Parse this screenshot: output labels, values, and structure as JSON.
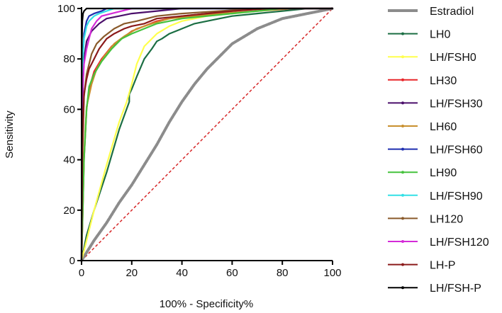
{
  "chart_data": {
    "type": "line",
    "title": "",
    "xlabel": "100% - Specificity%",
    "ylabel": "Sensitivity",
    "xlim": [
      0,
      100
    ],
    "ylim": [
      0,
      100
    ],
    "xticks": [
      "0",
      "20",
      "40",
      "60",
      "80",
      "100"
    ],
    "yticks": [
      "0",
      "20",
      "40",
      "60",
      "80",
      "100"
    ],
    "reference_line": {
      "name": "reference",
      "color": "#d62728",
      "points": [
        [
          0,
          0
        ],
        [
          100,
          100
        ]
      ]
    },
    "legend_position": "right",
    "series": [
      {
        "name": "Estradiol",
        "color": "#8c8c8c",
        "points": [
          [
            0,
            0
          ],
          [
            5,
            8
          ],
          [
            10,
            15
          ],
          [
            15,
            23
          ],
          [
            20,
            30
          ],
          [
            25,
            38
          ],
          [
            30,
            46
          ],
          [
            35,
            55
          ],
          [
            40,
            63
          ],
          [
            45,
            70
          ],
          [
            50,
            76
          ],
          [
            55,
            81
          ],
          [
            60,
            86
          ],
          [
            65,
            89
          ],
          [
            70,
            92
          ],
          [
            75,
            94
          ],
          [
            80,
            96
          ],
          [
            85,
            97
          ],
          [
            90,
            98
          ],
          [
            95,
            99
          ],
          [
            100,
            100
          ]
        ]
      },
      {
        "name": "LH0",
        "color": "#1b6e43",
        "points": [
          [
            0,
            0
          ],
          [
            1,
            5
          ],
          [
            2,
            10
          ],
          [
            5,
            20
          ],
          [
            10,
            35
          ],
          [
            15,
            52
          ],
          [
            19,
            63
          ],
          [
            19,
            66
          ],
          [
            20,
            68
          ],
          [
            22,
            73
          ],
          [
            25,
            80
          ],
          [
            28,
            84
          ],
          [
            30,
            87
          ],
          [
            32,
            88
          ],
          [
            35,
            90
          ],
          [
            40,
            92
          ],
          [
            45,
            94
          ],
          [
            50,
            95
          ],
          [
            55,
            96
          ],
          [
            60,
            97
          ],
          [
            70,
            98
          ],
          [
            80,
            99
          ],
          [
            90,
            100
          ],
          [
            100,
            100
          ]
        ]
      },
      {
        "name": "LH/FSH0",
        "color": "#ffff4d",
        "points": [
          [
            0,
            0
          ],
          [
            5,
            20
          ],
          [
            10,
            38
          ],
          [
            15,
            55
          ],
          [
            18,
            63
          ],
          [
            20,
            70
          ],
          [
            22,
            78
          ],
          [
            25,
            85
          ],
          [
            30,
            90
          ],
          [
            35,
            93
          ],
          [
            40,
            95
          ],
          [
            50,
            97
          ],
          [
            60,
            98
          ],
          [
            70,
            99
          ],
          [
            80,
            100
          ],
          [
            100,
            100
          ]
        ]
      },
      {
        "name": "LH30",
        "color": "#e8262a",
        "points": [
          [
            0,
            0
          ],
          [
            0.5,
            20
          ],
          [
            1,
            40
          ],
          [
            2,
            60
          ],
          [
            3,
            68
          ],
          [
            5,
            75
          ],
          [
            8,
            80
          ],
          [
            12,
            85
          ],
          [
            16,
            88
          ],
          [
            20,
            91
          ],
          [
            25,
            93
          ],
          [
            30,
            95
          ],
          [
            40,
            97
          ],
          [
            50,
            98
          ],
          [
            60,
            99
          ],
          [
            70,
            100
          ],
          [
            100,
            100
          ]
        ]
      },
      {
        "name": "LH/FSH30",
        "color": "#4b0f6b",
        "points": [
          [
            0,
            0
          ],
          [
            0.3,
            40
          ],
          [
            0.6,
            70
          ],
          [
            1,
            80
          ],
          [
            2,
            87
          ],
          [
            4,
            91
          ],
          [
            7,
            94
          ],
          [
            10,
            96
          ],
          [
            15,
            97
          ],
          [
            20,
            98
          ],
          [
            30,
            99
          ],
          [
            40,
            100
          ],
          [
            100,
            100
          ]
        ]
      },
      {
        "name": "LH60",
        "color": "#c8902e",
        "points": [
          [
            0,
            0
          ],
          [
            0.5,
            22
          ],
          [
            1,
            42
          ],
          [
            2,
            61
          ],
          [
            4,
            70
          ],
          [
            6,
            76
          ],
          [
            9,
            81
          ],
          [
            13,
            86
          ],
          [
            17,
            89
          ],
          [
            22,
            92
          ],
          [
            28,
            94
          ],
          [
            35,
            96
          ],
          [
            45,
            97
          ],
          [
            55,
            98
          ],
          [
            70,
            99
          ],
          [
            85,
            100
          ],
          [
            100,
            100
          ]
        ]
      },
      {
        "name": "LH/FSH60",
        "color": "#1f2fb0",
        "points": [
          [
            0,
            0
          ],
          [
            0.2,
            60
          ],
          [
            0.5,
            80
          ],
          [
            1,
            90
          ],
          [
            2,
            95
          ],
          [
            3,
            97
          ],
          [
            5,
            98
          ],
          [
            8,
            99
          ],
          [
            10,
            100
          ],
          [
            100,
            100
          ]
        ]
      },
      {
        "name": "LH90",
        "color": "#45c23d",
        "points": [
          [
            0,
            0
          ],
          [
            0.5,
            20
          ],
          [
            1,
            40
          ],
          [
            2,
            60
          ],
          [
            3,
            69
          ],
          [
            5,
            74
          ],
          [
            8,
            79
          ],
          [
            12,
            84
          ],
          [
            16,
            88
          ],
          [
            20,
            90
          ],
          [
            25,
            92
          ],
          [
            30,
            94
          ],
          [
            40,
            96
          ],
          [
            50,
            97
          ],
          [
            60,
            98
          ],
          [
            70,
            99
          ],
          [
            80,
            100
          ],
          [
            100,
            100
          ]
        ]
      },
      {
        "name": "LH/FSH90",
        "color": "#33e0e6",
        "points": [
          [
            0,
            0
          ],
          [
            0.2,
            60
          ],
          [
            0.5,
            80
          ],
          [
            1,
            88
          ],
          [
            2,
            93
          ],
          [
            3,
            95
          ],
          [
            5,
            97
          ],
          [
            7,
            98
          ],
          [
            10,
            99
          ],
          [
            13,
            100
          ],
          [
            100,
            100
          ]
        ]
      },
      {
        "name": "LH120",
        "color": "#8a5a2b",
        "points": [
          [
            0,
            0
          ],
          [
            0.3,
            40
          ],
          [
            1,
            65
          ],
          [
            2,
            74
          ],
          [
            4,
            82
          ],
          [
            6,
            86
          ],
          [
            9,
            89
          ],
          [
            13,
            92
          ],
          [
            17,
            94
          ],
          [
            22,
            95
          ],
          [
            30,
            97
          ],
          [
            40,
            98
          ],
          [
            55,
            99
          ],
          [
            70,
            100
          ],
          [
            100,
            100
          ]
        ]
      },
      {
        "name": "LH/FSH120",
        "color": "#d42ad8",
        "points": [
          [
            0,
            0
          ],
          [
            0.2,
            50
          ],
          [
            0.5,
            70
          ],
          [
            1,
            78
          ],
          [
            2,
            84
          ],
          [
            3,
            88
          ],
          [
            4,
            92
          ],
          [
            6,
            95
          ],
          [
            8,
            97
          ],
          [
            12,
            98
          ],
          [
            16,
            99
          ],
          [
            20,
            100
          ],
          [
            100,
            100
          ]
        ]
      },
      {
        "name": "LH-P",
        "color": "#8b1a1a",
        "points": [
          [
            0,
            0
          ],
          [
            0.3,
            45
          ],
          [
            1,
            66
          ],
          [
            2,
            72
          ],
          [
            3,
            76
          ],
          [
            5,
            80
          ],
          [
            7,
            84
          ],
          [
            10,
            88
          ],
          [
            13,
            90
          ],
          [
            17,
            92
          ],
          [
            20,
            93
          ],
          [
            25,
            94
          ],
          [
            30,
            96
          ],
          [
            40,
            97
          ],
          [
            50,
            98
          ],
          [
            60,
            99
          ],
          [
            75,
            100
          ],
          [
            100,
            100
          ]
        ]
      },
      {
        "name": "LH/FSH-P",
        "color": "#000000",
        "points": [
          [
            0,
            0
          ],
          [
            0.1,
            85
          ],
          [
            0.3,
            95
          ],
          [
            0.6,
            98
          ],
          [
            1,
            99
          ],
          [
            2,
            100
          ],
          [
            100,
            100
          ]
        ]
      }
    ]
  }
}
